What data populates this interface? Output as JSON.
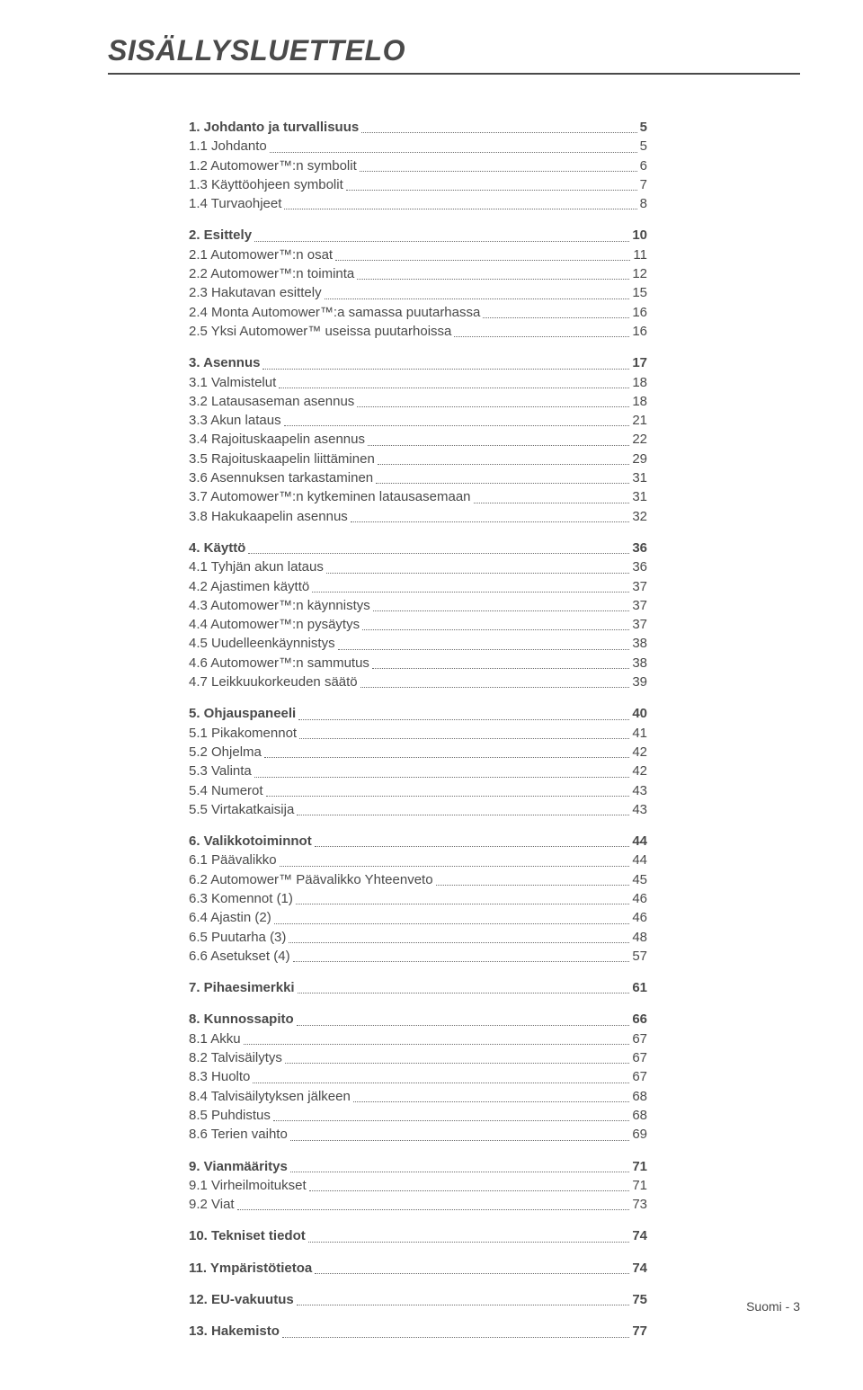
{
  "page_title": "SISÄLLYSLUETTELO",
  "footer_text": "Suomi - 3",
  "text_color": "#4a4a4a",
  "dot_color": "#6a6a6a",
  "background_color": "#ffffff",
  "title_fontsize": 32,
  "body_fontsize": 15,
  "sections": [
    {
      "entries": [
        {
          "label": "1. Johdanto ja turvallisuus",
          "page": "5",
          "bold": true
        },
        {
          "label": "1.1 Johdanto",
          "page": "5",
          "bold": false
        },
        {
          "label": "1.2 Automower™:n symbolit",
          "page": "6",
          "bold": false
        },
        {
          "label": "1.3 Käyttöohjeen symbolit",
          "page": "7",
          "bold": false
        },
        {
          "label": "1.4 Turvaohjeet",
          "page": "8",
          "bold": false
        }
      ]
    },
    {
      "entries": [
        {
          "label": "2. Esittely",
          "page": "10",
          "bold": true
        },
        {
          "label": "2.1 Automower™:n osat",
          "page": "11",
          "bold": false
        },
        {
          "label": "2.2 Automower™:n toiminta",
          "page": "12",
          "bold": false
        },
        {
          "label": "2.3 Hakutavan esittely",
          "page": "15",
          "bold": false
        },
        {
          "label": "2.4 Monta Automower™:a samassa puutarhassa",
          "page": "16",
          "bold": false
        },
        {
          "label": "2.5 Yksi Automower™ useissa puutarhoissa",
          "page": "16",
          "bold": false
        }
      ]
    },
    {
      "entries": [
        {
          "label": "3. Asennus",
          "page": "17",
          "bold": true
        },
        {
          "label": "3.1 Valmistelut",
          "page": "18",
          "bold": false
        },
        {
          "label": "3.2 Latausaseman asennus",
          "page": "18",
          "bold": false
        },
        {
          "label": "3.3 Akun lataus",
          "page": "21",
          "bold": false
        },
        {
          "label": "3.4 Rajoituskaapelin asennus",
          "page": "22",
          "bold": false
        },
        {
          "label": "3.5 Rajoituskaapelin liittäminen",
          "page": "29",
          "bold": false
        },
        {
          "label": "3.6 Asennuksen tarkastaminen",
          "page": "31",
          "bold": false
        },
        {
          "label": "3.7 Automower™:n kytkeminen latausasemaan",
          "page": "31",
          "bold": false
        },
        {
          "label": "3.8 Hakukaapelin asennus",
          "page": "32",
          "bold": false
        }
      ]
    },
    {
      "entries": [
        {
          "label": "4. Käyttö",
          "page": "36",
          "bold": true
        },
        {
          "label": "4.1 Tyhjän akun lataus",
          "page": "36",
          "bold": false
        },
        {
          "label": "4.2 Ajastimen käyttö",
          "page": "37",
          "bold": false
        },
        {
          "label": "4.3 Automower™:n käynnistys",
          "page": "37",
          "bold": false
        },
        {
          "label": "4.4 Automower™:n pysäytys",
          "page": "37",
          "bold": false
        },
        {
          "label": "4.5 Uudelleenkäynnistys",
          "page": "38",
          "bold": false
        },
        {
          "label": "4.6 Automower™:n sammutus",
          "page": "38",
          "bold": false
        },
        {
          "label": "4.7 Leikkuukorkeuden säätö",
          "page": "39",
          "bold": false
        }
      ]
    },
    {
      "entries": [
        {
          "label": "5. Ohjauspaneeli",
          "page": "40",
          "bold": true
        },
        {
          "label": "5.1 Pikakomennot",
          "page": "41",
          "bold": false
        },
        {
          "label": "5.2 Ohjelma",
          "page": "42",
          "bold": false
        },
        {
          "label": "5.3 Valinta",
          "page": "42",
          "bold": false
        },
        {
          "label": "5.4 Numerot",
          "page": "43",
          "bold": false
        },
        {
          "label": "5.5 Virtakatkaisija",
          "page": "43",
          "bold": false
        }
      ]
    },
    {
      "entries": [
        {
          "label": "6. Valikkotoiminnot",
          "page": "44",
          "bold": true
        },
        {
          "label": "6.1 Päävalikko",
          "page": "44",
          "bold": false
        },
        {
          "label": "6.2 Automower™ Päävalikko Yhteenveto",
          "page": "45",
          "bold": false
        },
        {
          "label": "6.3 Komennot (1)",
          "page": "46",
          "bold": false
        },
        {
          "label": "6.4 Ajastin (2)",
          "page": "46",
          "bold": false
        },
        {
          "label": "6.5 Puutarha (3)",
          "page": "48",
          "bold": false
        },
        {
          "label": "6.6 Asetukset (4)",
          "page": "57",
          "bold": false
        }
      ]
    },
    {
      "entries": [
        {
          "label": "7. Pihaesimerkki",
          "page": "61",
          "bold": true
        }
      ]
    },
    {
      "entries": [
        {
          "label": "8. Kunnossapito",
          "page": "66",
          "bold": true
        },
        {
          "label": "8.1 Akku",
          "page": "67",
          "bold": false
        },
        {
          "label": "8.2 Talvisäilytys",
          "page": "67",
          "bold": false
        },
        {
          "label": "8.3 Huolto",
          "page": "67",
          "bold": false
        },
        {
          "label": "8.4 Talvisäilytyksen jälkeen",
          "page": "68",
          "bold": false
        },
        {
          "label": "8.5 Puhdistus",
          "page": "68",
          "bold": false
        },
        {
          "label": "8.6 Terien vaihto",
          "page": "69",
          "bold": false
        }
      ]
    },
    {
      "entries": [
        {
          "label": "9. Vianmääritys",
          "page": "71",
          "bold": true
        },
        {
          "label": "9.1 Virheilmoitukset",
          "page": "71",
          "bold": false
        },
        {
          "label": "9.2 Viat",
          "page": "73",
          "bold": false
        }
      ]
    },
    {
      "entries": [
        {
          "label": "10. Tekniset tiedot",
          "page": "74",
          "bold": true
        }
      ]
    },
    {
      "entries": [
        {
          "label": "11. Ympäristötietoa",
          "page": "74",
          "bold": true
        }
      ]
    },
    {
      "entries": [
        {
          "label": "12. EU-vakuutus",
          "page": "75",
          "bold": true
        }
      ]
    },
    {
      "entries": [
        {
          "label": "13. Hakemisto",
          "page": "77",
          "bold": true
        }
      ]
    }
  ]
}
